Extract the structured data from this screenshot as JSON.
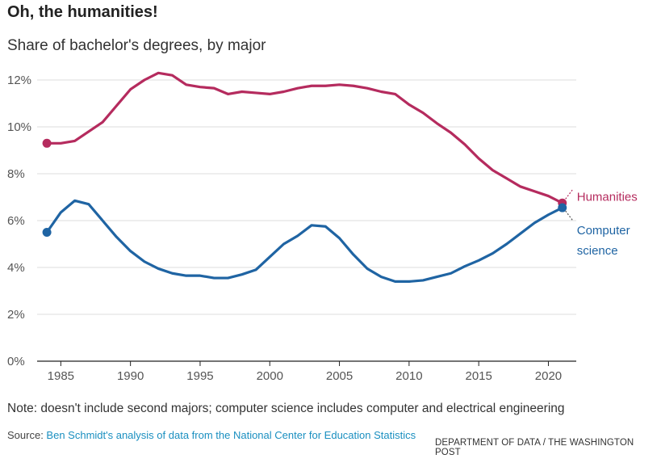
{
  "header": {
    "title": "Oh, the humanities!",
    "subtitle": "Share of bachelor's degrees, by major"
  },
  "chart_data": {
    "type": "line",
    "title": "Oh, the humanities!",
    "subtitle": "Share of bachelor's degrees, by major",
    "xlabel": "",
    "ylabel": "",
    "xlim": [
      1983.3,
      2022
    ],
    "ylim": [
      0,
      12
    ],
    "x_ticks": [
      "1985",
      "1990",
      "1995",
      "2000",
      "2005",
      "2010",
      "2015",
      "2020"
    ],
    "y_ticks": [
      "0%",
      "2%",
      "4%",
      "6%",
      "8%",
      "10%",
      "12%"
    ],
    "grid": "horizontal",
    "x": [
      1984,
      1985,
      1986,
      1987,
      1988,
      1989,
      1990,
      1991,
      1992,
      1993,
      1994,
      1995,
      1996,
      1997,
      1998,
      1999,
      2000,
      2001,
      2002,
      2003,
      2004,
      2005,
      2006,
      2007,
      2008,
      2009,
      2010,
      2011,
      2012,
      2013,
      2014,
      2015,
      2016,
      2017,
      2018,
      2019,
      2020,
      2021
    ],
    "series": [
      {
        "name": "Humanities",
        "color": "#b52b5e",
        "values": [
          9.3,
          9.3,
          9.4,
          9.8,
          10.2,
          10.9,
          11.6,
          12.0,
          12.3,
          12.2,
          11.8,
          11.7,
          11.65,
          11.4,
          11.5,
          11.45,
          11.4,
          11.5,
          11.65,
          11.75,
          11.75,
          11.8,
          11.75,
          11.65,
          11.5,
          11.4,
          10.95,
          10.6,
          10.15,
          9.75,
          9.25,
          8.65,
          8.15,
          7.8,
          7.45,
          7.25,
          7.05,
          6.75
        ]
      },
      {
        "name": "Computer science",
        "color": "#1f64a3",
        "values": [
          5.5,
          6.35,
          6.85,
          6.7,
          6.0,
          5.3,
          4.7,
          4.25,
          3.95,
          3.75,
          3.65,
          3.65,
          3.55,
          3.55,
          3.7,
          3.9,
          4.45,
          5.0,
          5.35,
          5.8,
          5.75,
          5.25,
          4.55,
          3.95,
          3.6,
          3.4,
          3.4,
          3.45,
          3.6,
          3.75,
          4.05,
          4.3,
          4.6,
          5.0,
          5.45,
          5.9,
          6.25,
          6.55
        ]
      }
    ],
    "labels": {
      "humanities": "Humanities",
      "cs_line1": "Computer",
      "cs_line2": "science"
    }
  },
  "footer": {
    "note": "Note: doesn't include second majors; computer science includes computer and electrical engineering",
    "source_prefix": "Source: ",
    "source_link": "Ben Schmidt's analysis of data from the National Center for Education Statistics",
    "credit": "DEPARTMENT OF DATA / THE WASHINGTON POST"
  }
}
